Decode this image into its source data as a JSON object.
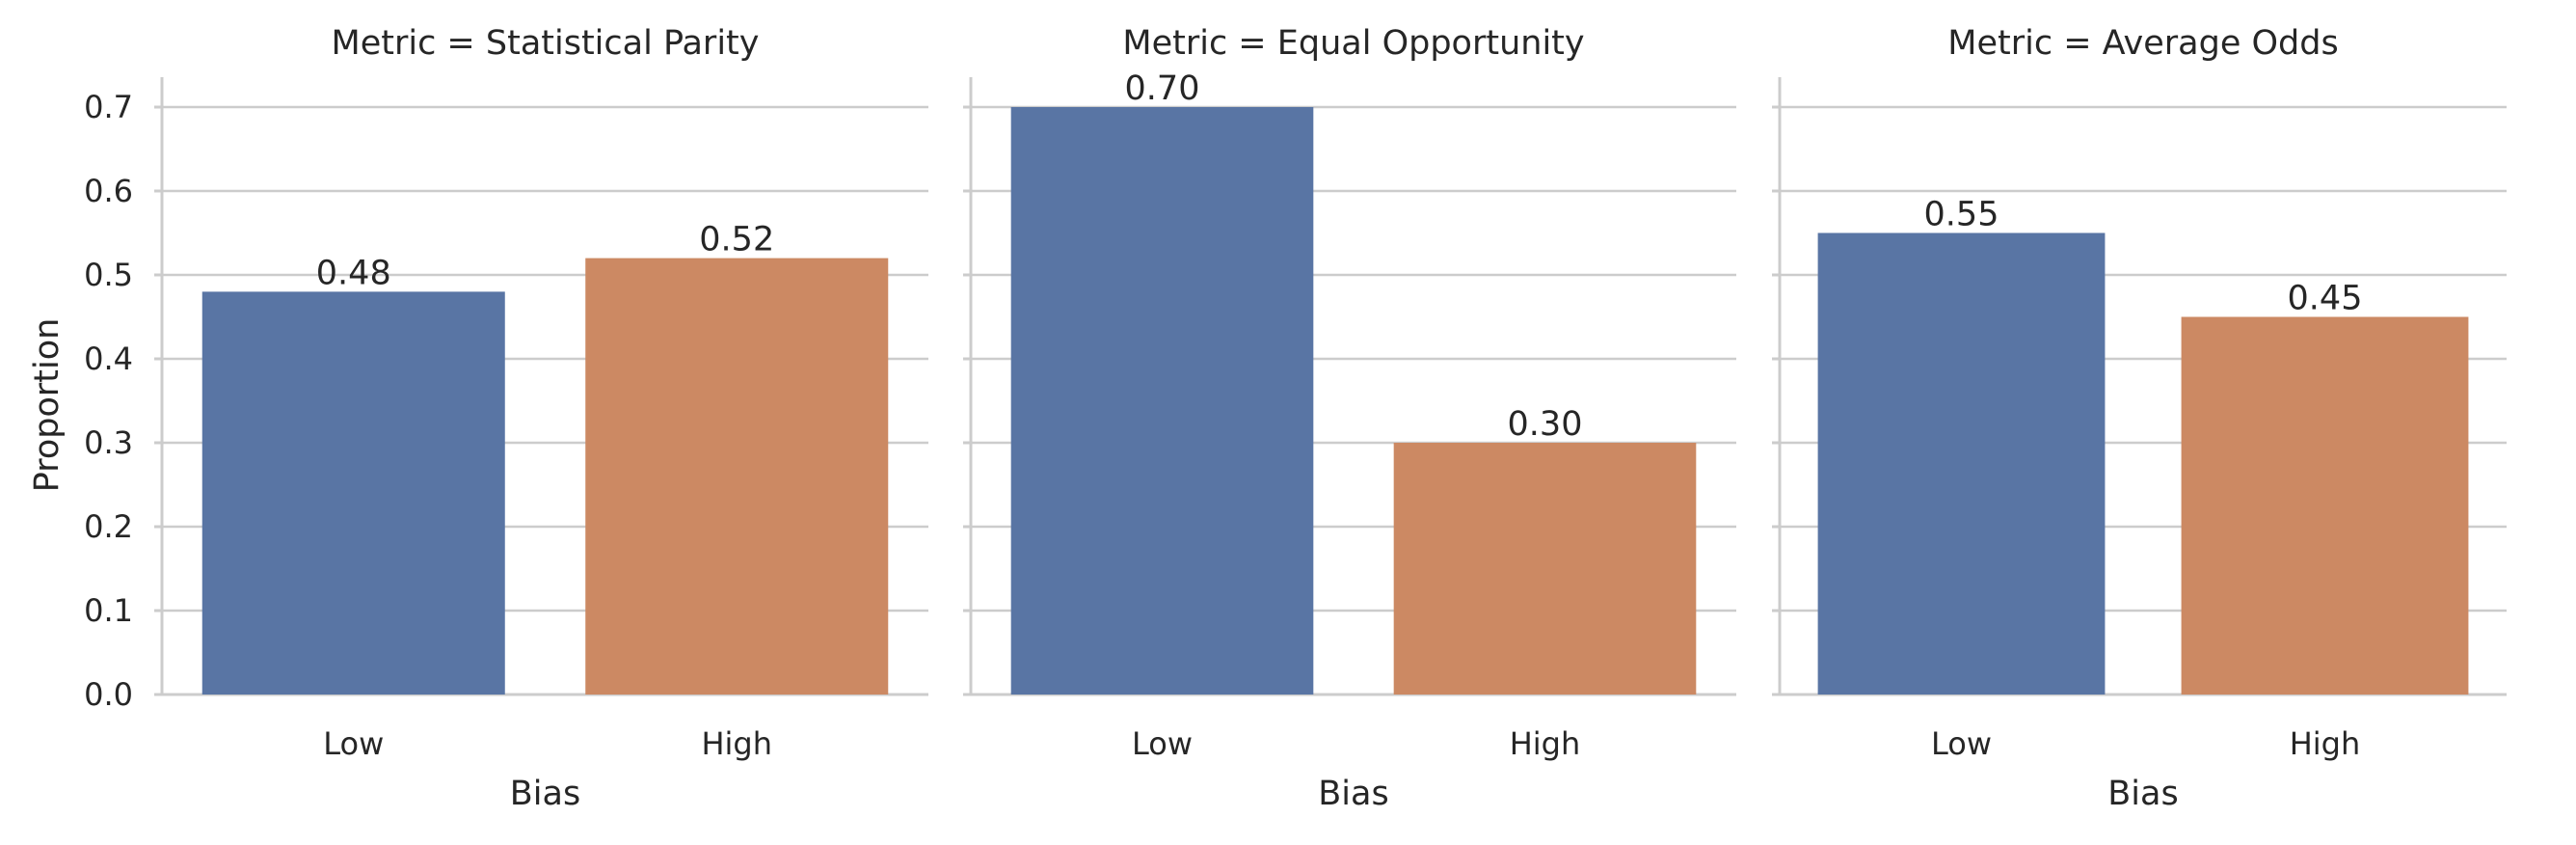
{
  "chart_data": [
    {
      "type": "bar",
      "title": "Metric = Statistical Parity",
      "categories": [
        "Low",
        "High"
      ],
      "values": [
        0.48,
        0.52
      ],
      "data_labels": [
        "0.48",
        "0.52"
      ],
      "colors": [
        "#5975a4",
        "#cc8963"
      ],
      "xlabel": "Bias",
      "ylabel": "Proportion",
      "ylim": [
        0,
        0.735
      ],
      "yticks": [
        "0.0",
        "0.1",
        "0.2",
        "0.3",
        "0.4",
        "0.5",
        "0.6",
        "0.7"
      ],
      "grid": "horizontal"
    },
    {
      "type": "bar",
      "title": "Metric = Equal Opportunity",
      "categories": [
        "Low",
        "High"
      ],
      "values": [
        0.7,
        0.3
      ],
      "data_labels": [
        "0.70",
        "0.30"
      ],
      "colors": [
        "#5975a4",
        "#cc8963"
      ],
      "xlabel": "Bias",
      "ylabel": "",
      "ylim": [
        0,
        0.735
      ],
      "yticks": [],
      "grid": "horizontal"
    },
    {
      "type": "bar",
      "title": "Metric = Average Odds",
      "categories": [
        "Low",
        "High"
      ],
      "values": [
        0.55,
        0.45
      ],
      "data_labels": [
        "0.55",
        "0.45"
      ],
      "colors": [
        "#5975a4",
        "#cc8963"
      ],
      "xlabel": "Bias",
      "ylabel": "",
      "ylim": [
        0,
        0.735
      ],
      "yticks": [],
      "grid": "horizontal"
    }
  ]
}
